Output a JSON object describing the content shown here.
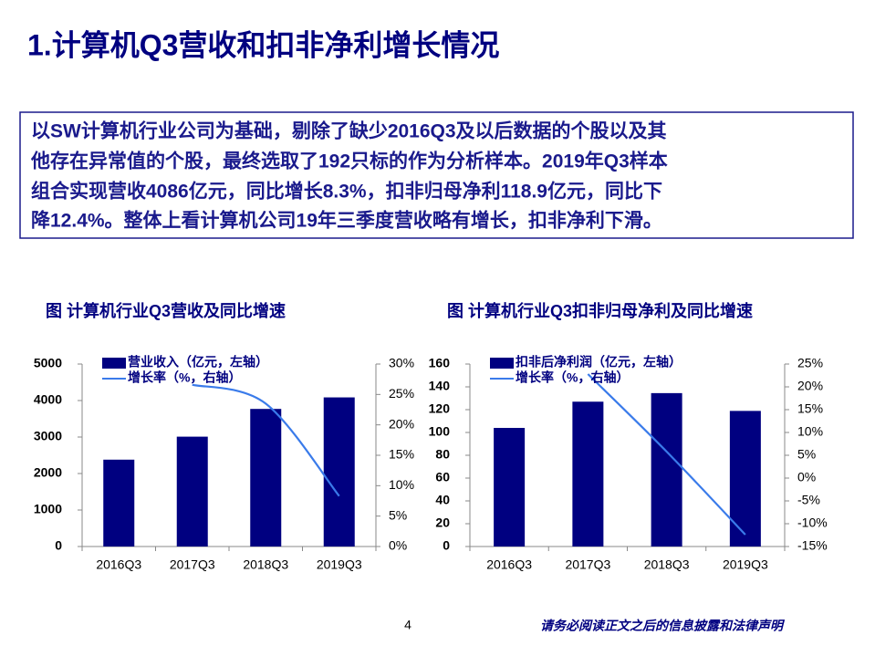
{
  "title": "1.计算机Q3营收和扣非净利增长情况",
  "summary": [
    "以SW计算机行业公司为基础，剔除了缺少2016Q3及以后数据的个股以及其",
    "他存在异常值的个股，最终选取了192只标的作为分析样本。2019年Q3样本",
    "组合实现营收4086亿元，同比增长8.3%，扣非归母净利118.9亿元，同比下",
    "降12.4%。整体上看计算机公司19年三季度营收略有增长，扣非净利下滑。"
  ],
  "page_number": "4",
  "footer": "请务必阅读正文之后的信息披露和法律声明",
  "chart_data": [
    {
      "type": "bar",
      "title": "图 计算机行业Q3营收及同比增速",
      "categories": [
        "2016Q3",
        "2017Q3",
        "2018Q3",
        "2019Q3"
      ],
      "series": [
        {
          "name": "营业收入（亿元，左轴）",
          "type": "bar",
          "color": "#000080",
          "values": [
            2380,
            3010,
            3770,
            4086
          ]
        },
        {
          "name": "增长率（%，右轴）",
          "type": "line",
          "axis": "y2",
          "color": "#3a7bea",
          "values": [
            null,
            26.6,
            23.5,
            8.3
          ]
        }
      ],
      "ylim": [
        0,
        5000
      ],
      "yticks": [
        0,
        1000,
        2000,
        3000,
        4000,
        5000
      ],
      "y2lim": [
        0,
        30
      ],
      "y2ticks": [
        {
          "value": 0,
          "label": "0%"
        },
        {
          "value": 5,
          "label": "5%"
        },
        {
          "value": 10,
          "label": "10%"
        },
        {
          "value": 15,
          "label": "15%"
        },
        {
          "value": 20,
          "label": "20%"
        },
        {
          "value": 25,
          "label": "25%"
        },
        {
          "value": 30,
          "label": "30%"
        }
      ],
      "legend": "top-left"
    },
    {
      "type": "bar",
      "title": "图 计算机行业Q3扣非归母净利及同比增速",
      "categories": [
        "2016Q3",
        "2017Q3",
        "2018Q3",
        "2019Q3"
      ],
      "series": [
        {
          "name": "扣非后净利润（亿元，左轴）",
          "type": "bar",
          "color": "#000080",
          "values": [
            104,
            127,
            134.5,
            118.9
          ]
        },
        {
          "name": "增长率（%，右轴）",
          "type": "line",
          "axis": "y2",
          "color": "#3a7bea",
          "values": [
            null,
            22.8,
            5.8,
            -12.4
          ]
        }
      ],
      "ylim": [
        0,
        160
      ],
      "yticks": [
        0,
        20,
        40,
        60,
        80,
        100,
        120,
        140,
        160
      ],
      "y2lim": [
        -15,
        25
      ],
      "y2ticks": [
        {
          "value": -15,
          "label": "-15%"
        },
        {
          "value": -10,
          "label": "-10%"
        },
        {
          "value": -5,
          "label": "-5%"
        },
        {
          "value": 0,
          "label": "0%"
        },
        {
          "value": 5,
          "label": "5%"
        },
        {
          "value": 10,
          "label": "10%"
        },
        {
          "value": 15,
          "label": "15%"
        },
        {
          "value": 20,
          "label": "20%"
        },
        {
          "value": 25,
          "label": "25%"
        }
      ],
      "legend": "top-left"
    }
  ]
}
